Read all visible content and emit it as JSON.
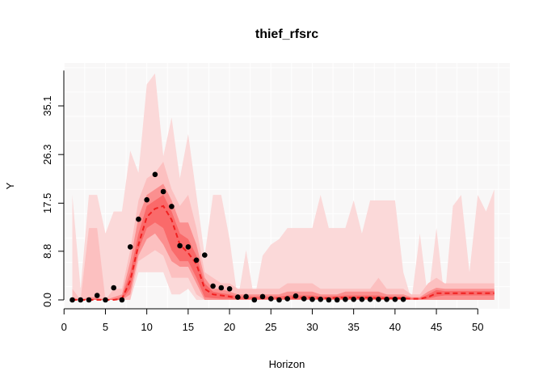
{
  "chart_data": {
    "type": "line",
    "title": "thief_rfsrc",
    "xlabel": "Horizon",
    "ylabel": "Y",
    "xlim": [
      0,
      53
    ],
    "ylim": [
      -2,
      43
    ],
    "x_ticks": [
      0,
      5,
      10,
      15,
      20,
      25,
      30,
      35,
      40,
      45,
      50
    ],
    "y_ticks": [
      0.0,
      8.8,
      17.5,
      26.3,
      35.1
    ],
    "y_tick_labels": [
      "0.0",
      "8.8",
      "17.5",
      "26.3",
      "35.1"
    ],
    "grid": true,
    "colors": {
      "panel_bg": "#f8f7f7",
      "grid": "#ffffff",
      "band_outer": "#fbd9d9",
      "band_mid1": "#fcc0c0",
      "band_mid2": "#fb8f8f",
      "band_inner": "#fa6a6a",
      "forecast_line": "#f02020",
      "points": "#000000"
    },
    "series": [
      {
        "kind": "points",
        "x": [
          1,
          2,
          3,
          4,
          5,
          6,
          7,
          8,
          9,
          10,
          11,
          12,
          13,
          14,
          15,
          16,
          17,
          18,
          19,
          20,
          21,
          22,
          23,
          24,
          25,
          26,
          27,
          28,
          29,
          30,
          31,
          32,
          33,
          34,
          35,
          36,
          37,
          38,
          39,
          40,
          41
        ],
        "values": [
          0,
          0,
          0,
          0.8,
          0,
          2.2,
          0,
          9.6,
          14.6,
          18.1,
          22.7,
          19.6,
          16.9,
          9.8,
          9.6,
          7.2,
          8.1,
          2.5,
          2.2,
          2.0,
          0.5,
          0.6,
          0,
          0.6,
          0.2,
          0,
          0.2,
          0.7,
          0.2,
          0.1,
          0.1,
          0,
          0,
          0.1,
          0.1,
          0.1,
          0.1,
          0.1,
          0.1,
          0.1,
          0.1
        ]
      },
      {
        "kind": "median-line",
        "x": [
          1,
          2,
          3,
          4,
          5,
          6,
          7,
          8,
          9,
          10,
          11,
          12,
          13,
          14,
          15,
          16,
          17,
          18,
          19,
          20,
          21,
          22,
          23,
          24,
          25,
          26,
          27,
          28,
          29,
          30,
          31,
          32,
          33,
          34,
          35,
          36,
          37,
          38,
          39,
          40,
          41,
          42,
          43,
          44,
          45,
          46,
          47,
          48,
          49,
          50,
          51,
          52
        ],
        "values": [
          0,
          0,
          0,
          0,
          0,
          0,
          0.2,
          3.5,
          10.0,
          15.0,
          16.5,
          17.0,
          14.5,
          10.0,
          8.5,
          6.5,
          2.0,
          1.0,
          0.8,
          0.6,
          0.3,
          0.3,
          0.3,
          0.3,
          0.3,
          0.3,
          0.4,
          0.4,
          0.4,
          0.4,
          0.3,
          0.3,
          0.4,
          0.4,
          0.4,
          0.4,
          0.4,
          0.3,
          0.3,
          0.3,
          0.3,
          0.2,
          0.2,
          0.5,
          1.2,
          1.2,
          1.2,
          1.2,
          1.2,
          1.2,
          1.2,
          1.2
        ]
      }
    ],
    "bands": [
      {
        "level": "outer",
        "lower": [
          0,
          0,
          0,
          0,
          0,
          0,
          0,
          0,
          5,
          5,
          5,
          5,
          1,
          1,
          2,
          0,
          0,
          0,
          0,
          0,
          0,
          0,
          0,
          0,
          0,
          0,
          0,
          0,
          0,
          0,
          0,
          0,
          0,
          0,
          0,
          0,
          0,
          0,
          0,
          0,
          0,
          0,
          0,
          0,
          0,
          0,
          0,
          0,
          0,
          0,
          0,
          0
        ],
        "upper": [
          19,
          2,
          19,
          19,
          12,
          16,
          16,
          27,
          23,
          39,
          41,
          26,
          33,
          22,
          30,
          19,
          8,
          19,
          19,
          11,
          0,
          9,
          0,
          8,
          10,
          11,
          13,
          13,
          13,
          13,
          19,
          13,
          13,
          13,
          18,
          12,
          18,
          18,
          18,
          18,
          5,
          0,
          12,
          0,
          13,
          0,
          17,
          19,
          5,
          19,
          16,
          20
        ]
      },
      {
        "level": "mid1",
        "lower": [
          0,
          0,
          0,
          0,
          0,
          0,
          0,
          0,
          7,
          8,
          9,
          8,
          4,
          4,
          4,
          1,
          0,
          0,
          0,
          0,
          0,
          0,
          0,
          0,
          0,
          0,
          0,
          0,
          0,
          0,
          0,
          0,
          0,
          0,
          0,
          0,
          0,
          0,
          0,
          0,
          0,
          0,
          0,
          0,
          0,
          0,
          0,
          0,
          0,
          0,
          0,
          0
        ],
        "upper": [
          2,
          0,
          13,
          13,
          0,
          2,
          2,
          9,
          18,
          22,
          23,
          25,
          20,
          17,
          19,
          13,
          5,
          4,
          3,
          3,
          2,
          2,
          2,
          2,
          2,
          2,
          3,
          3,
          3,
          3,
          2,
          2,
          2,
          2,
          2,
          2,
          2,
          4,
          2,
          2,
          2,
          1,
          1,
          3,
          4,
          3,
          3,
          3,
          3,
          3,
          3,
          3
        ]
      },
      {
        "level": "mid2",
        "lower": [
          0,
          0,
          0,
          0,
          0,
          0,
          0,
          1,
          8,
          11,
          12,
          10,
          7,
          6,
          6,
          3,
          0,
          0,
          0,
          0,
          0,
          0,
          0,
          0,
          0,
          0,
          0,
          0,
          0,
          0,
          0,
          0,
          0,
          0,
          0,
          0,
          0,
          0,
          0,
          0,
          0,
          0,
          0,
          0,
          0,
          0,
          0,
          0,
          0,
          0,
          0,
          0
        ],
        "upper": [
          0.5,
          0,
          0.5,
          0.5,
          0,
          0.5,
          1,
          7,
          15,
          19,
          20,
          21,
          18,
          14,
          14,
          10,
          4,
          2,
          2,
          1.5,
          1,
          1,
          1,
          1,
          1,
          1,
          1.5,
          1.5,
          1.5,
          1.5,
          1,
          1,
          1,
          1.5,
          1.5,
          1.5,
          1.5,
          1.5,
          1,
          1,
          1,
          0.5,
          0.5,
          1.5,
          2.2,
          2,
          2,
          2,
          2,
          2,
          2,
          2
        ]
      },
      {
        "level": "inner",
        "lower": [
          0,
          0,
          0,
          0,
          0,
          0,
          0,
          2,
          9,
          13,
          14,
          13,
          9,
          7,
          7,
          4,
          0.5,
          0.3,
          0.2,
          0.2,
          0.1,
          0.1,
          0.1,
          0.1,
          0.1,
          0.1,
          0.1,
          0.1,
          0.1,
          0.1,
          0.1,
          0.1,
          0.1,
          0.1,
          0.1,
          0.1,
          0.1,
          0.1,
          0.1,
          0.1,
          0.1,
          0.1,
          0.1,
          0.2,
          0.6,
          0.8,
          0.8,
          0.8,
          0.8,
          0.8,
          0.8,
          0.8
        ],
        "upper": [
          0.2,
          0,
          0.2,
          0.2,
          0,
          0.2,
          0.5,
          5,
          12,
          17,
          18,
          19,
          16,
          12,
          11,
          8,
          3,
          1.5,
          1.2,
          1,
          0.6,
          0.6,
          0.6,
          0.6,
          0.6,
          0.6,
          0.8,
          0.8,
          0.8,
          0.8,
          0.6,
          0.6,
          0.7,
          0.8,
          0.8,
          0.8,
          0.8,
          0.8,
          0.6,
          0.6,
          0.6,
          0.3,
          0.3,
          1,
          1.8,
          1.6,
          1.6,
          1.6,
          1.6,
          1.6,
          1.6,
          1.6
        ]
      }
    ]
  }
}
